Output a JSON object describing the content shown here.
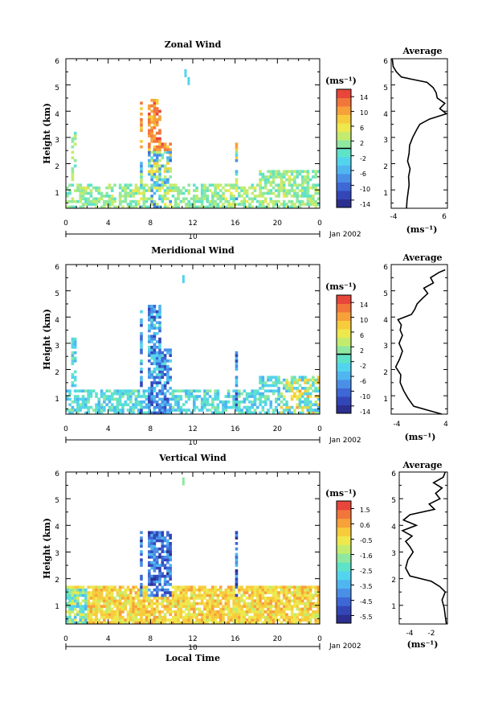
{
  "chart_data": [
    {
      "type": "heatmap",
      "title": "Zonal Wind",
      "ylabel": "Height (km)",
      "xticks": [
        "0",
        "4",
        "8",
        "12",
        "16",
        "20",
        "0"
      ],
      "yticks": [
        "1",
        "2",
        "3",
        "4",
        "5",
        "6"
      ],
      "xlim": [
        0,
        24
      ],
      "ylim": [
        0.3,
        6
      ],
      "date_label": "10",
      "month_label": "Jan 2002",
      "colorbar": {
        "unit": "(ms⁻¹)",
        "ticks": [
          "14",
          "10",
          "6",
          "2",
          "-2",
          "-6",
          "-10",
          "-14"
        ],
        "range": [
          -16,
          16
        ],
        "zero_marker": 0
      },
      "average": {
        "title": "Average",
        "xlabel": "(ms⁻¹)",
        "xticks": [
          "-4",
          "6"
        ],
        "xlim": [
          -4,
          7
        ],
        "heights": [
          0.3,
          0.6,
          0.9,
          1.2,
          1.5,
          1.8,
          2.1,
          2.4,
          2.7,
          3.0,
          3.3,
          3.5,
          3.7,
          3.9,
          4.1,
          4.3,
          4.5,
          4.7,
          4.9,
          5.1,
          5.2,
          5.3,
          5.5,
          5.7,
          6.0
        ],
        "values": [
          -1.0,
          -0.9,
          -0.7,
          -0.5,
          -0.6,
          -0.3,
          -0.8,
          -0.5,
          -0.4,
          0.2,
          1.0,
          1.6,
          3.5,
          6.8,
          5.5,
          6.5,
          5.0,
          4.8,
          4.2,
          3.0,
          0.5,
          -2.0,
          -3.0,
          -3.6,
          -3.8
        ]
      },
      "scheme": "signed"
    },
    {
      "type": "heatmap",
      "title": "Meridional Wind",
      "ylabel": "Height (km)",
      "xticks": [
        "0",
        "4",
        "8",
        "12",
        "16",
        "20",
        "0"
      ],
      "yticks": [
        "1",
        "2",
        "3",
        "4",
        "5",
        "6"
      ],
      "xlim": [
        0,
        24
      ],
      "ylim": [
        0.3,
        6
      ],
      "date_label": "10",
      "month_label": "Jan 2002",
      "colorbar": {
        "unit": "(ms⁻¹)",
        "ticks": [
          "14",
          "10",
          "6",
          "2",
          "-2",
          "-6",
          "-10",
          "-14"
        ],
        "range": [
          -16,
          16
        ],
        "zero_marker": 0
      },
      "average": {
        "title": "Average",
        "xlabel": "(ms⁻¹)",
        "xticks": [
          "-4",
          "4"
        ],
        "xlim": [
          -5,
          5
        ],
        "heights": [
          0.3,
          0.6,
          0.9,
          1.2,
          1.5,
          1.8,
          2.1,
          2.4,
          2.7,
          3.0,
          3.3,
          3.5,
          3.7,
          3.9,
          4.1,
          4.3,
          4.5,
          4.7,
          4.9,
          5.1,
          5.3,
          5.5,
          5.7,
          5.8
        ],
        "values": [
          4.0,
          -1.0,
          -2.0,
          -2.8,
          -3.4,
          -3.3,
          -4.2,
          -3.5,
          -3.0,
          -3.6,
          -3.0,
          -3.4,
          -3.2,
          -3.8,
          -1.4,
          -0.8,
          -0.4,
          0.5,
          1.5,
          0.8,
          2.5,
          2.0,
          3.5,
          4.6
        ]
      },
      "scheme": "signed"
    },
    {
      "type": "heatmap",
      "title": "Vertical Wind",
      "ylabel": "Height (km)",
      "xlabel": "Local Time",
      "xticks": [
        "0",
        "4",
        "8",
        "12",
        "16",
        "20",
        "0"
      ],
      "yticks": [
        "1",
        "2",
        "3",
        "4",
        "5",
        "6"
      ],
      "xlim": [
        0,
        24
      ],
      "ylim": [
        0.3,
        6
      ],
      "date_label": "10",
      "month_label": "Jan 2002",
      "colorbar": {
        "unit": "(ms⁻¹)",
        "ticks": [
          "1.5",
          "0.6",
          "-0.5",
          "-1.6",
          "-2.5",
          "-3.5",
          "-4.5",
          "-5.5"
        ],
        "range": [
          -6,
          2
        ],
        "zero_marker": null
      },
      "average": {
        "title": "Average",
        "xlabel": "(ms⁻¹)",
        "xticks": [
          "-4",
          "-2"
        ],
        "xlim": [
          -4.8,
          -0.3
        ],
        "heights": [
          0.3,
          0.6,
          0.9,
          1.2,
          1.5,
          1.7,
          1.9,
          2.1,
          2.4,
          2.7,
          3.0,
          3.2,
          3.4,
          3.6,
          3.8,
          4.0,
          4.2,
          4.4,
          4.6,
          4.8,
          5.0,
          5.2,
          5.4,
          5.6,
          5.8,
          6.0
        ],
        "values": [
          -0.4,
          -0.5,
          -0.6,
          -0.8,
          -0.5,
          -1.0,
          -1.8,
          -3.8,
          -4.2,
          -4.0,
          -3.5,
          -3.8,
          -4.2,
          -3.6,
          -4.5,
          -3.2,
          -4.4,
          -3.8,
          -1.5,
          -2.0,
          -1.0,
          -1.4,
          -0.8,
          -1.6,
          -0.7,
          -0.5
        ]
      },
      "scheme": "vertical"
    }
  ]
}
